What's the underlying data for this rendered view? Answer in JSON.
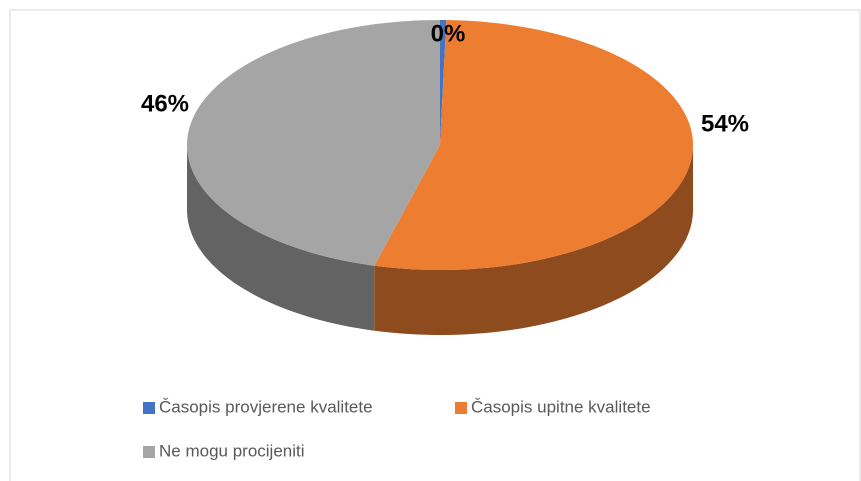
{
  "chart_data": {
    "type": "pie",
    "categories": [
      "Časopis provjerene kvalitete",
      "Časopis upitne kvalitete",
      "Ne mogu procijeniti"
    ],
    "values": [
      0.4,
      54,
      46
    ],
    "value_labels": [
      "0%",
      "54%",
      "46%"
    ],
    "colors": [
      "#4472c4",
      "#ed7d31",
      "#a5a5a5"
    ],
    "legend": "bottom"
  }
}
